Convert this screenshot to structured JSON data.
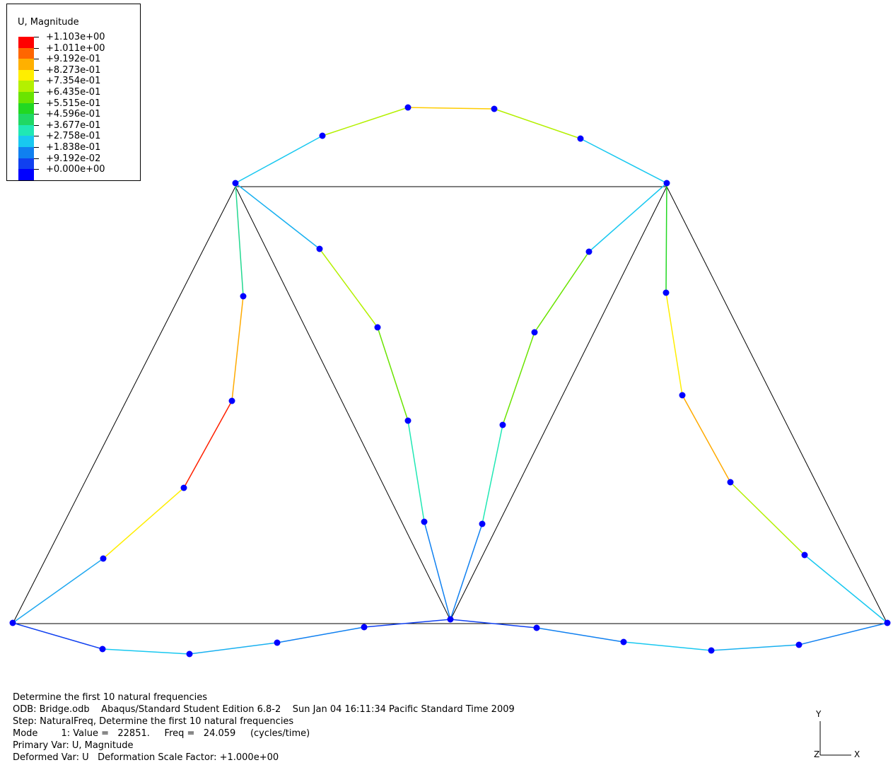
{
  "legend": {
    "title": "U, Magnitude",
    "values": [
      "+1.103e+00",
      "+1.011e+00",
      "+9.192e-01",
      "+8.273e-01",
      "+7.354e-01",
      "+6.435e-01",
      "+5.515e-01",
      "+4.596e-01",
      "+3.677e-01",
      "+2.758e-01",
      "+1.838e-01",
      "+9.192e-02",
      "+0.000e+00"
    ],
    "colors": [
      "#ff0000",
      "#ff6600",
      "#ffb000",
      "#ffee00",
      "#b4f000",
      "#6ae400",
      "#22d822",
      "#20d864",
      "#20e8b4",
      "#18c8f0",
      "#1080f0",
      "#1040f0",
      "#0000ff"
    ]
  },
  "info": {
    "line1": "Determine the first 10 natural frequencies",
    "line2": "ODB: Bridge.odb    Abaqus/Standard Student Edition 6.8-2    Sun Jan 04 16:11:34 Pacific Standard Time 2009",
    "line3": "Step: NaturalFreq, Determine the first 10 natural frequencies",
    "line4": "Mode        1: Value =   22851.     Freq =   24.059     (cycles/time)",
    "line5": "Primary Var: U, Magnitude",
    "line6": "Deformed Var: U   Deformation Scale Factor: +1.000e+00"
  },
  "triad": {
    "y": "Y",
    "x": "X",
    "z": "Z"
  },
  "node_color": "#0000ff"
}
